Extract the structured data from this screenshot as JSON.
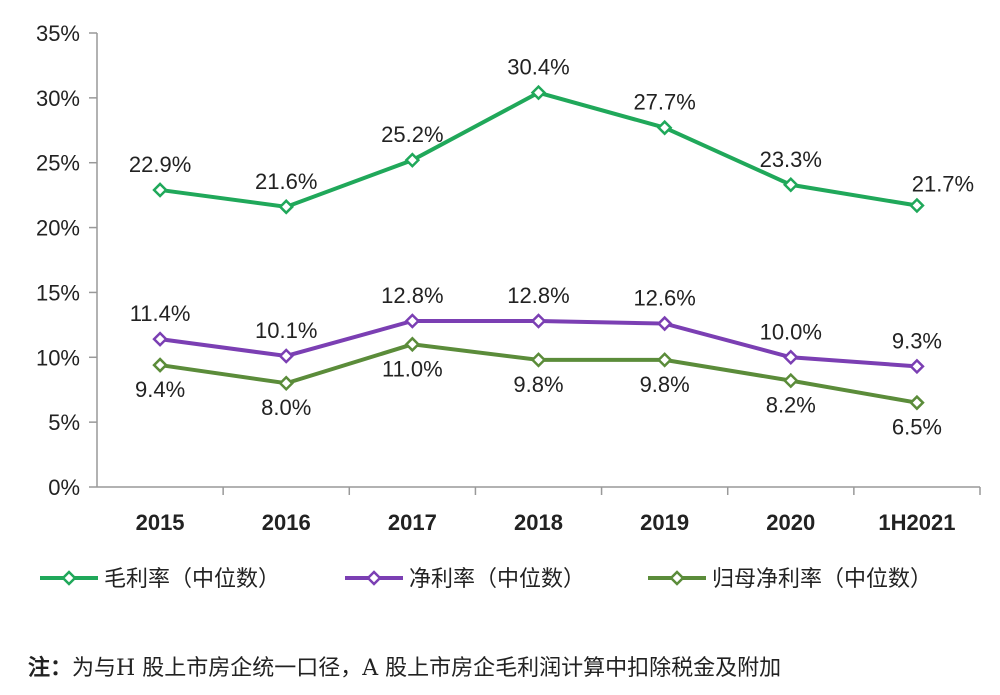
{
  "chart_data": {
    "type": "line",
    "categories": [
      "2015",
      "2016",
      "2017",
      "2018",
      "2019",
      "2020",
      "1H2021"
    ],
    "ylim": [
      0,
      35
    ],
    "yticks": [
      "0%",
      "5%",
      "10%",
      "15%",
      "20%",
      "25%",
      "30%",
      "35%"
    ],
    "grid": false,
    "legend_position": "bottom",
    "series": [
      {
        "name": "毛利率（中位数）",
        "color": "#20a85a",
        "values": [
          22.9,
          21.6,
          25.2,
          30.4,
          27.7,
          23.3,
          21.7
        ],
        "labels": [
          "22.9%",
          "21.6%",
          "25.2%",
          "30.4%",
          "27.7%",
          "23.3%",
          "21.7%"
        ],
        "label_side": "above"
      },
      {
        "name": "净利率（中位数）",
        "color": "#7b3fb3",
        "values": [
          11.4,
          10.1,
          12.8,
          12.8,
          12.6,
          10.0,
          9.3
        ],
        "labels": [
          "11.4%",
          "10.1%",
          "12.8%",
          "12.8%",
          "12.6%",
          "10.0%",
          "9.3%"
        ],
        "label_side": "above"
      },
      {
        "name": "归母净利率（中位数）",
        "color": "#5b8c3a",
        "values": [
          9.4,
          8.0,
          11.0,
          9.8,
          9.8,
          8.2,
          6.5
        ],
        "labels": [
          "9.4%",
          "8.0%",
          "11.0%",
          "9.8%",
          "9.8%",
          "8.2%",
          "6.5%"
        ],
        "label_side": "below"
      }
    ]
  },
  "note": {
    "prefix": "注：",
    "text": "为与H 股上市房企统一口径，A 股上市房企毛利润计算中扣除税金及附加"
  }
}
